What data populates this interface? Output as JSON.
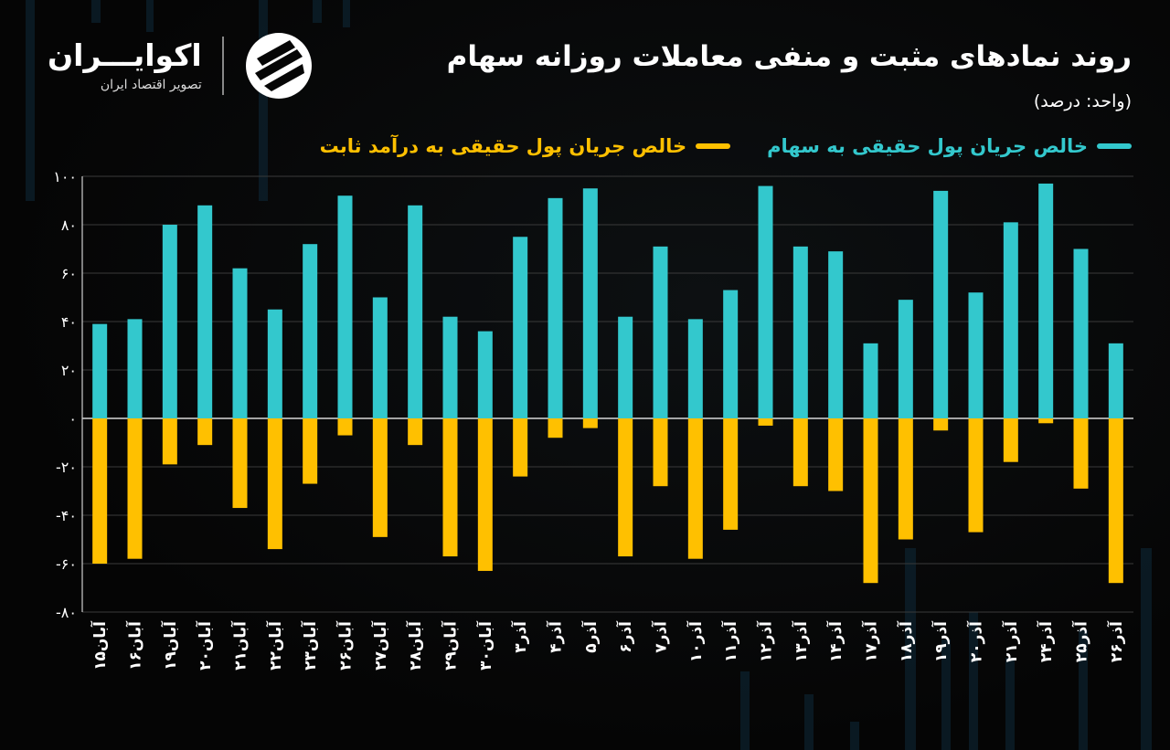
{
  "header": {
    "title": "روند نمادهای مثبت و منفی معاملات روزانه سهام",
    "unit": "(واحد: درصد)"
  },
  "brand": {
    "name": "اکوایـــران",
    "tagline": "تصویر اقتصاد ایران",
    "icon": "ecoiran-logo-icon"
  },
  "colors": {
    "positive": "#33c8cd",
    "negative": "#ffc000",
    "grid": "#3a3a3a",
    "axis": "#ffffff"
  },
  "legend": [
    {
      "label": "خالص جریان پول حقیقی به سهام",
      "color": "#33c8cd"
    },
    {
      "label": "خالص جریان پول حقیقی به درآمد ثابت",
      "color": "#ffc000"
    }
  ],
  "chart_data": {
    "type": "bar",
    "categories": [
      "آبان۱۵",
      "آبان۱۶",
      "آبان۱۹",
      "آبان۲۰",
      "آبان۲۱",
      "آبان۲۲",
      "آبان۲۳",
      "آبان۲۶",
      "آبان۲۷",
      "آبان۲۸",
      "آبان۲۹",
      "آبان۳۰",
      "آذر۳",
      "آذر۴",
      "آذر۵",
      "آذر۶",
      "آذر۷",
      "آذر۱۰",
      "آذر۱۱",
      "آذر۱۲",
      "آذر۱۳",
      "آذر۱۴",
      "آذر۱۷",
      "آذر۱۸",
      "آذر۱۹",
      "آذر۲۰",
      "آذر۲۱",
      "آذر۲۴",
      "آذر۲۵",
      "آذر۲۶"
    ],
    "series": [
      {
        "name": "خالص جریان پول حقیقی به سهام",
        "values": [
          39,
          41,
          80,
          88,
          62,
          45,
          72,
          92,
          50,
          88,
          42,
          36,
          75,
          91,
          95,
          42,
          71,
          41,
          53,
          96,
          71,
          69,
          31,
          49,
          94,
          52,
          81,
          97,
          70,
          31
        ]
      },
      {
        "name": "خالص جریان پول حقیقی به درآمد ثابت",
        "values": [
          -60,
          -58,
          -19,
          -11,
          -37,
          -54,
          -27,
          -7,
          -49,
          -11,
          -57,
          -63,
          -24,
          -8,
          -4,
          -57,
          -28,
          -58,
          -46,
          -3,
          -28,
          -30,
          -68,
          -50,
          -5,
          -47,
          -18,
          -2,
          -29,
          -68
        ]
      }
    ],
    "yticks": [
      "۱۰۰",
      "۸۰",
      "۶۰",
      "۴۰",
      "۲۰",
      "۰",
      "-۲۰",
      "-۴۰",
      "-۶۰",
      "-۸۰"
    ],
    "ytick_values": [
      100,
      80,
      60,
      40,
      20,
      0,
      -20,
      -40,
      -60,
      -80
    ],
    "ylim": [
      -80,
      100
    ],
    "grid": true,
    "legend_position": "top-right"
  }
}
